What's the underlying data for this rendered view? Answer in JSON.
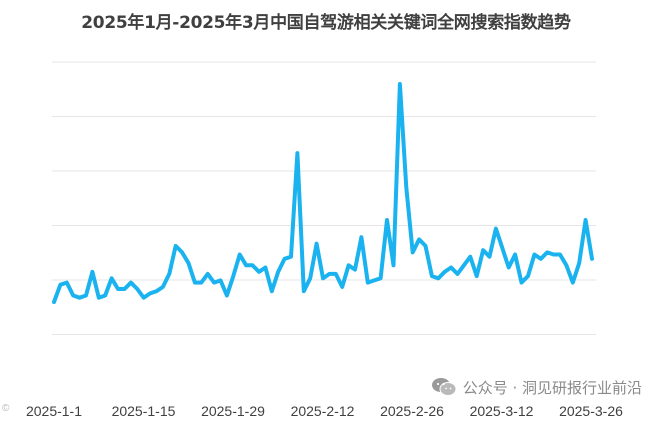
{
  "chart_data": {
    "type": "line",
    "title": "2025年1月-2025年3月中国自驾游相关关键词全网搜索指数趋势",
    "xlabel": "",
    "ylabel": "",
    "x_tick_labels": [
      "2025-1-1",
      "2025-1-15",
      "2025-1-29",
      "2025-2-12",
      "2025-2-26",
      "2025-3-12",
      "2025-3-26"
    ],
    "x_start": "2025-01-01",
    "x_end": "2025-03-31",
    "y_gridlines": 6,
    "grid": true,
    "series": [
      {
        "color": "#1ab3f0",
        "values": [
          17,
          25,
          26,
          20,
          19,
          20,
          31,
          19,
          20,
          28,
          23,
          23,
          26,
          23,
          19,
          21,
          22,
          24,
          30,
          43,
          40,
          35,
          26,
          26,
          30,
          26,
          27,
          20,
          29,
          39,
          34,
          34,
          31,
          33,
          22,
          31,
          37,
          38,
          86,
          22,
          28,
          44,
          28,
          30,
          30,
          24,
          34,
          32,
          47,
          26,
          27,
          28,
          55,
          34,
          118,
          70,
          40,
          46,
          43,
          29,
          28,
          31,
          33,
          30,
          34,
          38,
          29,
          41,
          38,
          51,
          42,
          33,
          39,
          26,
          29,
          39,
          37,
          40,
          39,
          39,
          34,
          26,
          35,
          55,
          37
        ]
      }
    ],
    "color_line": "#1ab3f0",
    "color_grid": "#e6e6e6"
  },
  "watermark": {
    "icon": "wechat-icon",
    "text": "公众号 · 洞见研报行业前沿"
  },
  "corner_mark": "©"
}
